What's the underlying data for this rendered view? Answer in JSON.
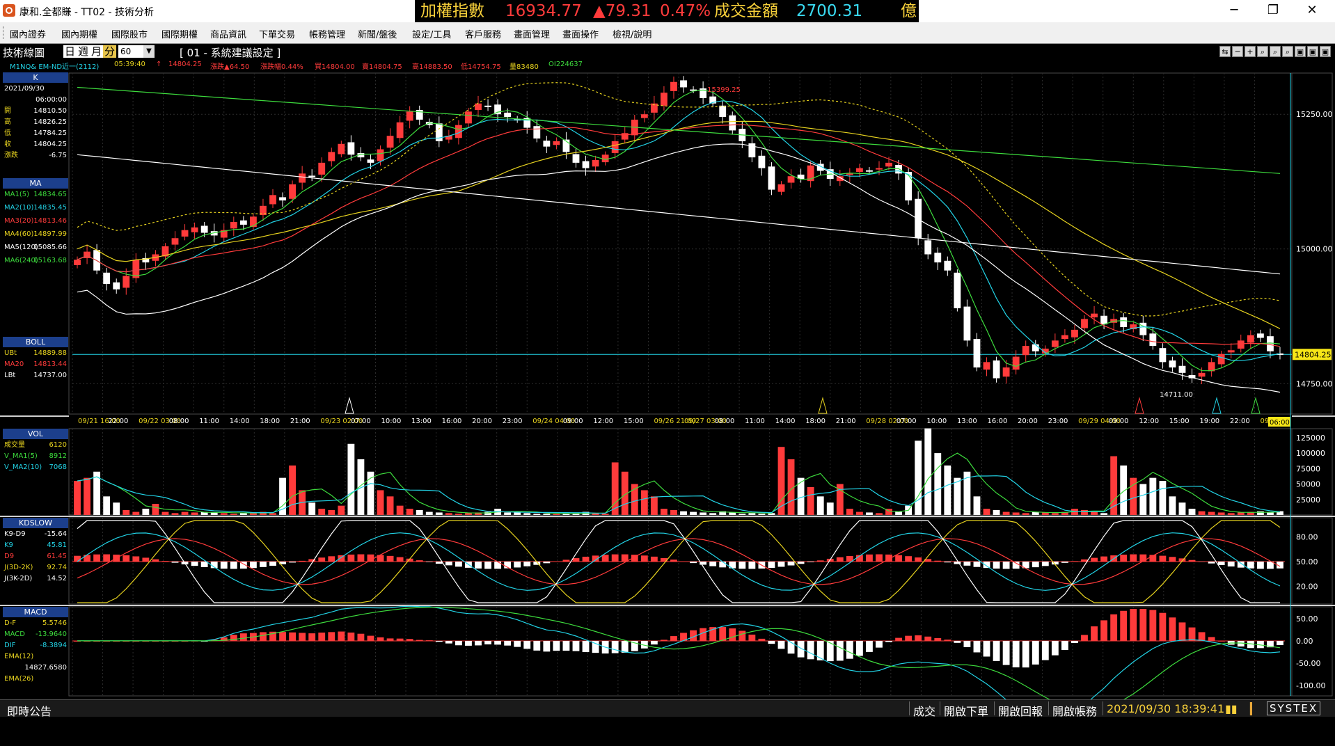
{
  "window": {
    "title": "康和.全都賺 - TT02 - 技術分析",
    "minimize": "─",
    "maximize": "❐",
    "close": "✕"
  },
  "ticker": {
    "label": "加權指數",
    "value": "16934.77",
    "change": "▲79.31",
    "pct": "0.47%",
    "turnover_label": "成交金額",
    "turnover": "2700.31",
    "unit": "億"
  },
  "menu": [
    "國內證券",
    "國內期權",
    "國際股市",
    "國際期權",
    "商品資訊",
    "下單交易",
    "帳務管理",
    "新聞/盤後",
    "設定/工具",
    "客戶服務",
    "畫面管理",
    "畫面操作",
    "檢視/說明"
  ],
  "toolbar": {
    "title": "技術線圖",
    "periods": [
      "日",
      "週",
      "月",
      "分"
    ],
    "active_period": "分",
    "interval": "60",
    "combo_arrow": "▼",
    "settings": "[ 01 - 系統建議設定 ]",
    "buttons": [
      "⇆",
      "─",
      "+",
      "⌕",
      "⌕",
      "⌕",
      "▣",
      "▣",
      "▣"
    ]
  },
  "quote": {
    "symbol": "M1NQ&  EM-ND近一(2112)",
    "time": "05:39:40",
    "arrow": "↑",
    "price": "14804.25",
    "chg": "漲跌▲64.50",
    "pct": "漲跌幅0.44%",
    "bid": "買14804.00",
    "ask": "賣14804.75",
    "high": "高14883.50",
    "low": "低14754.75",
    "vol": "量83480",
    "oi": "OI224637"
  },
  "colors": {
    "up": "#ff3b3b",
    "down": "#ffffff",
    "header": "#1c3f8c",
    "grid": "#333333"
  },
  "side": {
    "k": {
      "hdr": "K",
      "date": "2021/09/30",
      "time": "06:00:00",
      "rows": [
        {
          "l": "開",
          "v": "14810.50"
        },
        {
          "l": "高",
          "v": "14826.25"
        },
        {
          "l": "低",
          "v": "14784.25"
        },
        {
          "l": "收",
          "v": "14804.25"
        },
        {
          "l": "漲跌",
          "v": "-6.75"
        }
      ]
    },
    "ma": {
      "hdr": "MA",
      "rows": [
        {
          "l": "MA1(5)",
          "v": "14834.65",
          "c": "#3ddb3d"
        },
        {
          "l": "MA2(10)",
          "v": "14835.45",
          "c": "#22d3e6"
        },
        {
          "l": "MA3(20)",
          "v": "14813.46",
          "c": "#ff3b3b"
        },
        {
          "l": "MA4(60)",
          "v": "14897.99",
          "c": "#e6d21f"
        },
        {
          "l": "MA5(120)",
          "v": "15085.66",
          "c": "#ffffff"
        },
        {
          "l": "MA6(240)",
          "v": "15163.68",
          "c": "#3ddb3d"
        }
      ]
    },
    "boll": {
      "hdr": "BOLL",
      "rows": [
        {
          "l": "UBt",
          "v": "14889.88",
          "c": "#e6d21f"
        },
        {
          "l": "MA20",
          "v": "14813.44",
          "c": "#ff3b3b"
        },
        {
          "l": "LBt",
          "v": "14737.00",
          "c": "#ffffff"
        }
      ]
    },
    "vol": {
      "hdr": "VOL",
      "rows": [
        {
          "l": "成交量",
          "v": "6120",
          "c": "#e6d21f"
        },
        {
          "l": "V_MA1(5)",
          "v": "8912",
          "c": "#3ddb3d"
        },
        {
          "l": "V_MA2(10)",
          "v": "7068",
          "c": "#22d3e6"
        }
      ]
    },
    "kd": {
      "hdr": "KDSLOW",
      "rows": [
        {
          "l": "K9-D9",
          "v": "-15.64",
          "c": "#ffffff"
        },
        {
          "l": "K9",
          "v": "45.81",
          "c": "#22d3e6"
        },
        {
          "l": "D9",
          "v": "61.45",
          "c": "#ff3b3b"
        },
        {
          "l": "J(3D-2K)",
          "v": "92.74",
          "c": "#e6d21f"
        },
        {
          "l": "J(3K-2D)",
          "v": "14.52",
          "c": "#ffffff"
        }
      ]
    },
    "macd": {
      "hdr": "MACD",
      "rows": [
        {
          "l": "D-F",
          "v": "5.5746",
          "c": "#e6d21f"
        },
        {
          "l": "MACD",
          "v": "-13.9640",
          "c": "#3ddb3d"
        },
        {
          "l": "DIF",
          "v": "-8.3894",
          "c": "#22d3e6"
        },
        {
          "l": "EMA(12)",
          "v": "",
          "c": "#e6d21f"
        },
        {
          "l": "",
          "v": "14827.6580",
          "c": "#ffffff"
        },
        {
          "l": "EMA(26)",
          "v": "",
          "c": "#e6d21f"
        }
      ]
    }
  },
  "chart_data": [
    {
      "type": "candlestick",
      "title": "K",
      "ylim": [
        14700,
        15320
      ],
      "yticks": [
        15250,
        15000,
        14750
      ],
      "ytick_labels": [
        "15250.00",
        "15000.00",
        "14750.00"
      ],
      "last_price": "14804.25",
      "high_label": "15399.25",
      "low_label": "14711.00",
      "xtick_labels": [
        "09/21 16:00",
        "22:00",
        "09/22 03:00",
        "08:00",
        "11:00",
        "14:00",
        "18:00",
        "21:00",
        "09/23 02:00",
        "07:00",
        "10:00",
        "13:00",
        "16:00",
        "20:00",
        "23:00",
        "09/24 04:00",
        "09:00",
        "12:00",
        "15:00",
        "09/26 21:00",
        "09/27 03:00",
        "08:00",
        "11:00",
        "14:00",
        "18:00",
        "21:00",
        "09/28 02:00",
        "07:00",
        "10:00",
        "13:00",
        "16:00",
        "20:00",
        "23:00",
        "09/29 04:00",
        "09:00",
        "12:00",
        "15:00",
        "19:00",
        "22:00",
        "09/30 0"
      ],
      "last_x_label": "06:00",
      "closes": [
        14980,
        14995,
        14960,
        14935,
        14925,
        14950,
        14980,
        14975,
        14990,
        15005,
        15020,
        15035,
        15040,
        15030,
        15025,
        15035,
        15050,
        15045,
        15060,
        15080,
        15100,
        15090,
        15120,
        15140,
        15135,
        15160,
        15180,
        15195,
        15175,
        15170,
        15160,
        15185,
        15210,
        15235,
        15255,
        15240,
        15230,
        15200,
        15210,
        15230,
        15255,
        15270,
        15265,
        15250,
        15245,
        15240,
        15225,
        15205,
        15190,
        15200,
        15180,
        15160,
        15150,
        15165,
        15175,
        15200,
        15215,
        15240,
        15250,
        15270,
        15290,
        15310,
        15300,
        15295,
        15280,
        15270,
        15245,
        15220,
        15200,
        15170,
        15150,
        15110,
        15120,
        15135,
        15130,
        15155,
        15145,
        15130,
        15135,
        15140,
        15150,
        15145,
        15150,
        15160,
        15140,
        15090,
        15020,
        14990,
        14975,
        14960,
        14890,
        14830,
        14780,
        14790,
        14760,
        14780,
        14800,
        14820,
        14810,
        14815,
        14830,
        14840,
        14850,
        14870,
        14880,
        14860,
        14870,
        14855,
        14860,
        14840,
        14820,
        14790,
        14780,
        14770,
        14760,
        14770,
        14790,
        14805,
        14812,
        14830,
        14840,
        14835,
        14810,
        14804
      ],
      "ma_series_names": [
        "MA1(5)",
        "MA2(10)",
        "MA3(20)",
        "MA4(60)",
        "MA5(120)",
        "MA6(240)"
      ]
    },
    {
      "type": "bar",
      "title": "VOL",
      "ylim": [
        0,
        135000
      ],
      "yticks": [
        125000,
        100000,
        75000,
        50000,
        25000
      ],
      "ytick_labels": [
        "125000",
        "100000",
        "75000",
        "50000",
        "25000"
      ],
      "values": [
        55000,
        60000,
        70000,
        30000,
        20000,
        8000,
        5000,
        10000,
        18000,
        5000,
        3000,
        5000,
        4000,
        5000,
        4000,
        3000,
        2000,
        3000,
        4000,
        5000,
        3000,
        60000,
        80000,
        40000,
        20000,
        10000,
        8000,
        15000,
        115000,
        90000,
        70000,
        40000,
        30000,
        15000,
        10000,
        8000,
        5000,
        4000,
        3000,
        2000,
        3000,
        4000,
        5000,
        10000,
        4000,
        5000,
        3000,
        2000,
        2000,
        1500,
        2000,
        3000,
        5000,
        3000,
        2000,
        85000,
        70000,
        50000,
        40000,
        30000,
        10000,
        8000,
        6000,
        5000,
        4000,
        3000,
        6000,
        4000,
        2000,
        3000,
        2000,
        3000,
        110000,
        90000,
        60000,
        45000,
        30000,
        20000,
        50000,
        10000,
        5000,
        4000,
        3000,
        10000,
        5000,
        15000,
        120000,
        140000,
        100000,
        80000,
        60000,
        70000,
        30000,
        10000,
        8000,
        5000,
        4000,
        3000,
        5000,
        4000,
        3000,
        5000,
        10000,
        8000,
        6000,
        3000,
        95000,
        80000,
        60000,
        50000,
        60000,
        55000,
        30000,
        20000,
        10000,
        6000,
        5000,
        4000,
        3000,
        4000,
        5000,
        6000,
        4000,
        6120
      ],
      "up_flags_from_price": true
    },
    {
      "type": "bar",
      "title": "KDSLOW",
      "ylim": [
        0,
        100
      ],
      "yticks": [
        80,
        50,
        20
      ],
      "ytick_labels": [
        "80.00",
        "50.00",
        "20.00"
      ],
      "k9_last": 45.81,
      "d9_last": 61.45
    },
    {
      "type": "bar",
      "title": "MACD",
      "ylim": [
        -120,
        70
      ],
      "yticks": [
        50,
        0,
        -50,
        -100
      ],
      "ytick_labels": [
        "50.00",
        "0.00",
        "-50.00",
        "-100.00"
      ]
    }
  ],
  "status": {
    "announce": "即時公告",
    "items": [
      "成交",
      "開啟下單",
      "開啟回報",
      "開啟帳務"
    ],
    "datetime": "2021/09/30 18:39:41",
    "brand": "SYSTEX"
  }
}
